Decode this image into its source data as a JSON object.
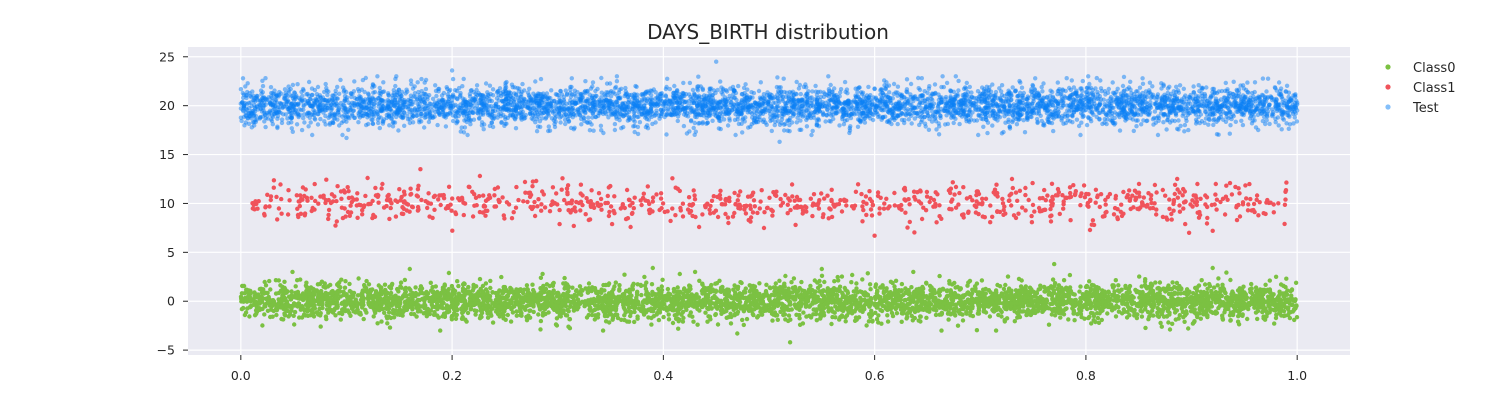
{
  "chart_data": {
    "type": "scatter",
    "title": "DAYS_BIRTH distribution",
    "xlabel": "",
    "ylabel": "",
    "xlim": [
      -0.05,
      1.05
    ],
    "ylim": [
      -5.5,
      26
    ],
    "x_ticks": [
      0.0,
      0.2,
      0.4,
      0.6,
      0.8,
      1.0
    ],
    "x_tick_labels": [
      "0.0",
      "0.2",
      "0.4",
      "0.6",
      "0.8",
      "1.0"
    ],
    "y_ticks": [
      -5,
      0,
      5,
      10,
      15,
      20,
      25
    ],
    "y_tick_labels": [
      "−5",
      "0",
      "5",
      "10",
      "15",
      "20",
      "25"
    ],
    "grid": true,
    "legend_position": "top-right-outside",
    "series": [
      {
        "name": "Class0",
        "color": "#7bc142",
        "opacity": 1.0,
        "center_y": 0,
        "spread": 0.9,
        "x_range": [
          0.0,
          1.0
        ],
        "count": 4500,
        "outliers": [
          [
            0.52,
            -4.2
          ],
          [
            0.77,
            3.8
          ],
          [
            0.39,
            3.4
          ],
          [
            0.55,
            3.3
          ],
          [
            0.16,
            3.3
          ],
          [
            0.92,
            3.4
          ],
          [
            0.47,
            -3.3
          ]
        ]
      },
      {
        "name": "Class1",
        "color": "#f0535b",
        "opacity": 1.0,
        "center_y": 10,
        "spread": 0.95,
        "x_range": [
          0.01,
          0.99
        ],
        "count": 900,
        "outliers": [
          [
            0.17,
            13.5
          ],
          [
            0.6,
            6.7
          ],
          [
            0.12,
            12.6
          ],
          [
            0.92,
            7.2
          ],
          [
            0.73,
            12.5
          ]
        ]
      },
      {
        "name": "Test",
        "color": "#0a7ff5",
        "opacity": 0.5,
        "center_y": 20,
        "spread": 1.0,
        "x_range": [
          0.0,
          1.0
        ],
        "count": 5000,
        "outliers": [
          [
            0.45,
            24.5
          ],
          [
            0.2,
            23.6
          ],
          [
            0.1,
            16.7
          ],
          [
            0.51,
            16.3
          ],
          [
            0.0,
            20.2
          ],
          [
            1.0,
            20.3
          ],
          [
            0.99,
            18.2
          ]
        ]
      }
    ]
  }
}
